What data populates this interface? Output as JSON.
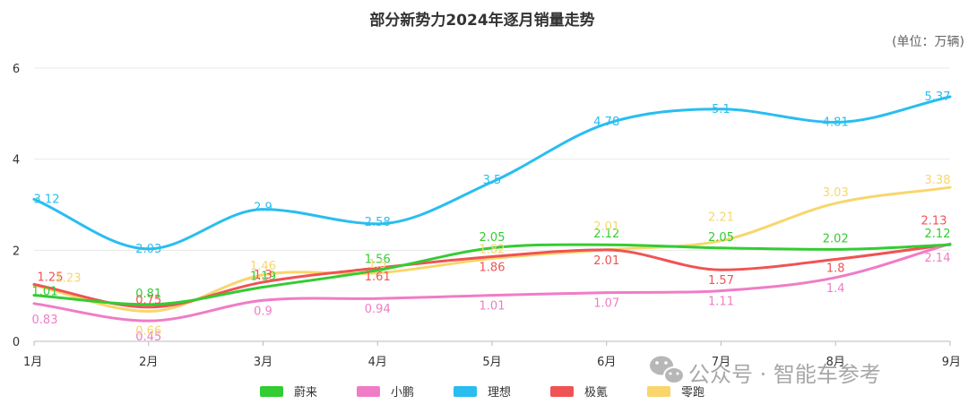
{
  "chart_data": {
    "type": "line",
    "title": "部分新势力2024年逐月销量走势",
    "unit_label": "(单位：万辆)",
    "categories": [
      "1月",
      "2月",
      "3月",
      "4月",
      "5月",
      "6月",
      "7月",
      "8月",
      "9月"
    ],
    "ylim": [
      0,
      6
    ],
    "yticks": [
      0,
      2,
      4,
      6
    ],
    "grid": true,
    "legend_position": "bottom",
    "series": [
      {
        "name": "蔚来",
        "color": "#33cc33",
        "values": [
          1.01,
          0.81,
          1.19,
          1.56,
          2.05,
          2.12,
          2.05,
          2.02,
          2.12
        ],
        "label_offsets": [
          [
            12,
            0
          ],
          [
            0,
            -8
          ],
          [
            0,
            -8
          ],
          [
            0,
            -8
          ],
          [
            0,
            -8
          ],
          [
            0,
            -8
          ],
          [
            0,
            -8
          ],
          [
            0,
            -8
          ],
          [
            -14,
            -8
          ]
        ]
      },
      {
        "name": "小鹏",
        "color": "#f07cc6",
        "values": [
          0.83,
          0.45,
          0.9,
          0.94,
          1.01,
          1.07,
          1.11,
          1.4,
          2.14
        ],
        "label_offsets": [
          [
            12,
            22
          ],
          [
            0,
            22
          ],
          [
            0,
            16
          ],
          [
            0,
            16
          ],
          [
            0,
            16
          ],
          [
            0,
            16
          ],
          [
            0,
            16
          ],
          [
            0,
            16
          ],
          [
            -14,
            20
          ]
        ]
      },
      {
        "name": "理想",
        "color": "#29bdf1",
        "values": [
          3.12,
          2.03,
          2.9,
          2.58,
          3.5,
          4.78,
          5.1,
          4.81,
          5.37
        ],
        "label_offsets": [
          [
            14,
            4
          ],
          [
            0,
            4
          ],
          [
            0,
            2
          ],
          [
            0,
            2
          ],
          [
            0,
            2
          ],
          [
            0,
            2
          ],
          [
            0,
            4
          ],
          [
            0,
            4
          ],
          [
            -14,
            4
          ]
        ]
      },
      {
        "name": "极氪",
        "color": "#f05353",
        "values": [
          1.25,
          0.75,
          1.3,
          1.61,
          1.86,
          2.01,
          1.57,
          1.8,
          2.13
        ],
        "label_offsets": [
          [
            18,
            -4
          ],
          [
            0,
            -4
          ],
          [
            0,
            -4
          ],
          [
            0,
            14
          ],
          [
            0,
            16
          ],
          [
            0,
            16
          ],
          [
            0,
            16
          ],
          [
            0,
            14
          ],
          [
            -18,
            -22
          ]
        ]
      },
      {
        "name": "零跑",
        "color": "#f8d66c",
        "values": [
          1.23,
          0.66,
          1.46,
          1.5,
          1.82,
          2.01,
          2.21,
          3.03,
          3.38
        ],
        "label_offsets": [
          [
            38,
            -4
          ],
          [
            0,
            26
          ],
          [
            0,
            -6
          ],
          [
            0,
            -6
          ],
          [
            0,
            -6
          ],
          [
            0,
            -22
          ],
          [
            0,
            -22
          ],
          [
            0,
            -8
          ],
          [
            -14,
            -4
          ]
        ]
      }
    ]
  },
  "watermark": {
    "text": "公众号 · 智能车参考",
    "icon": "wechat-icon"
  }
}
